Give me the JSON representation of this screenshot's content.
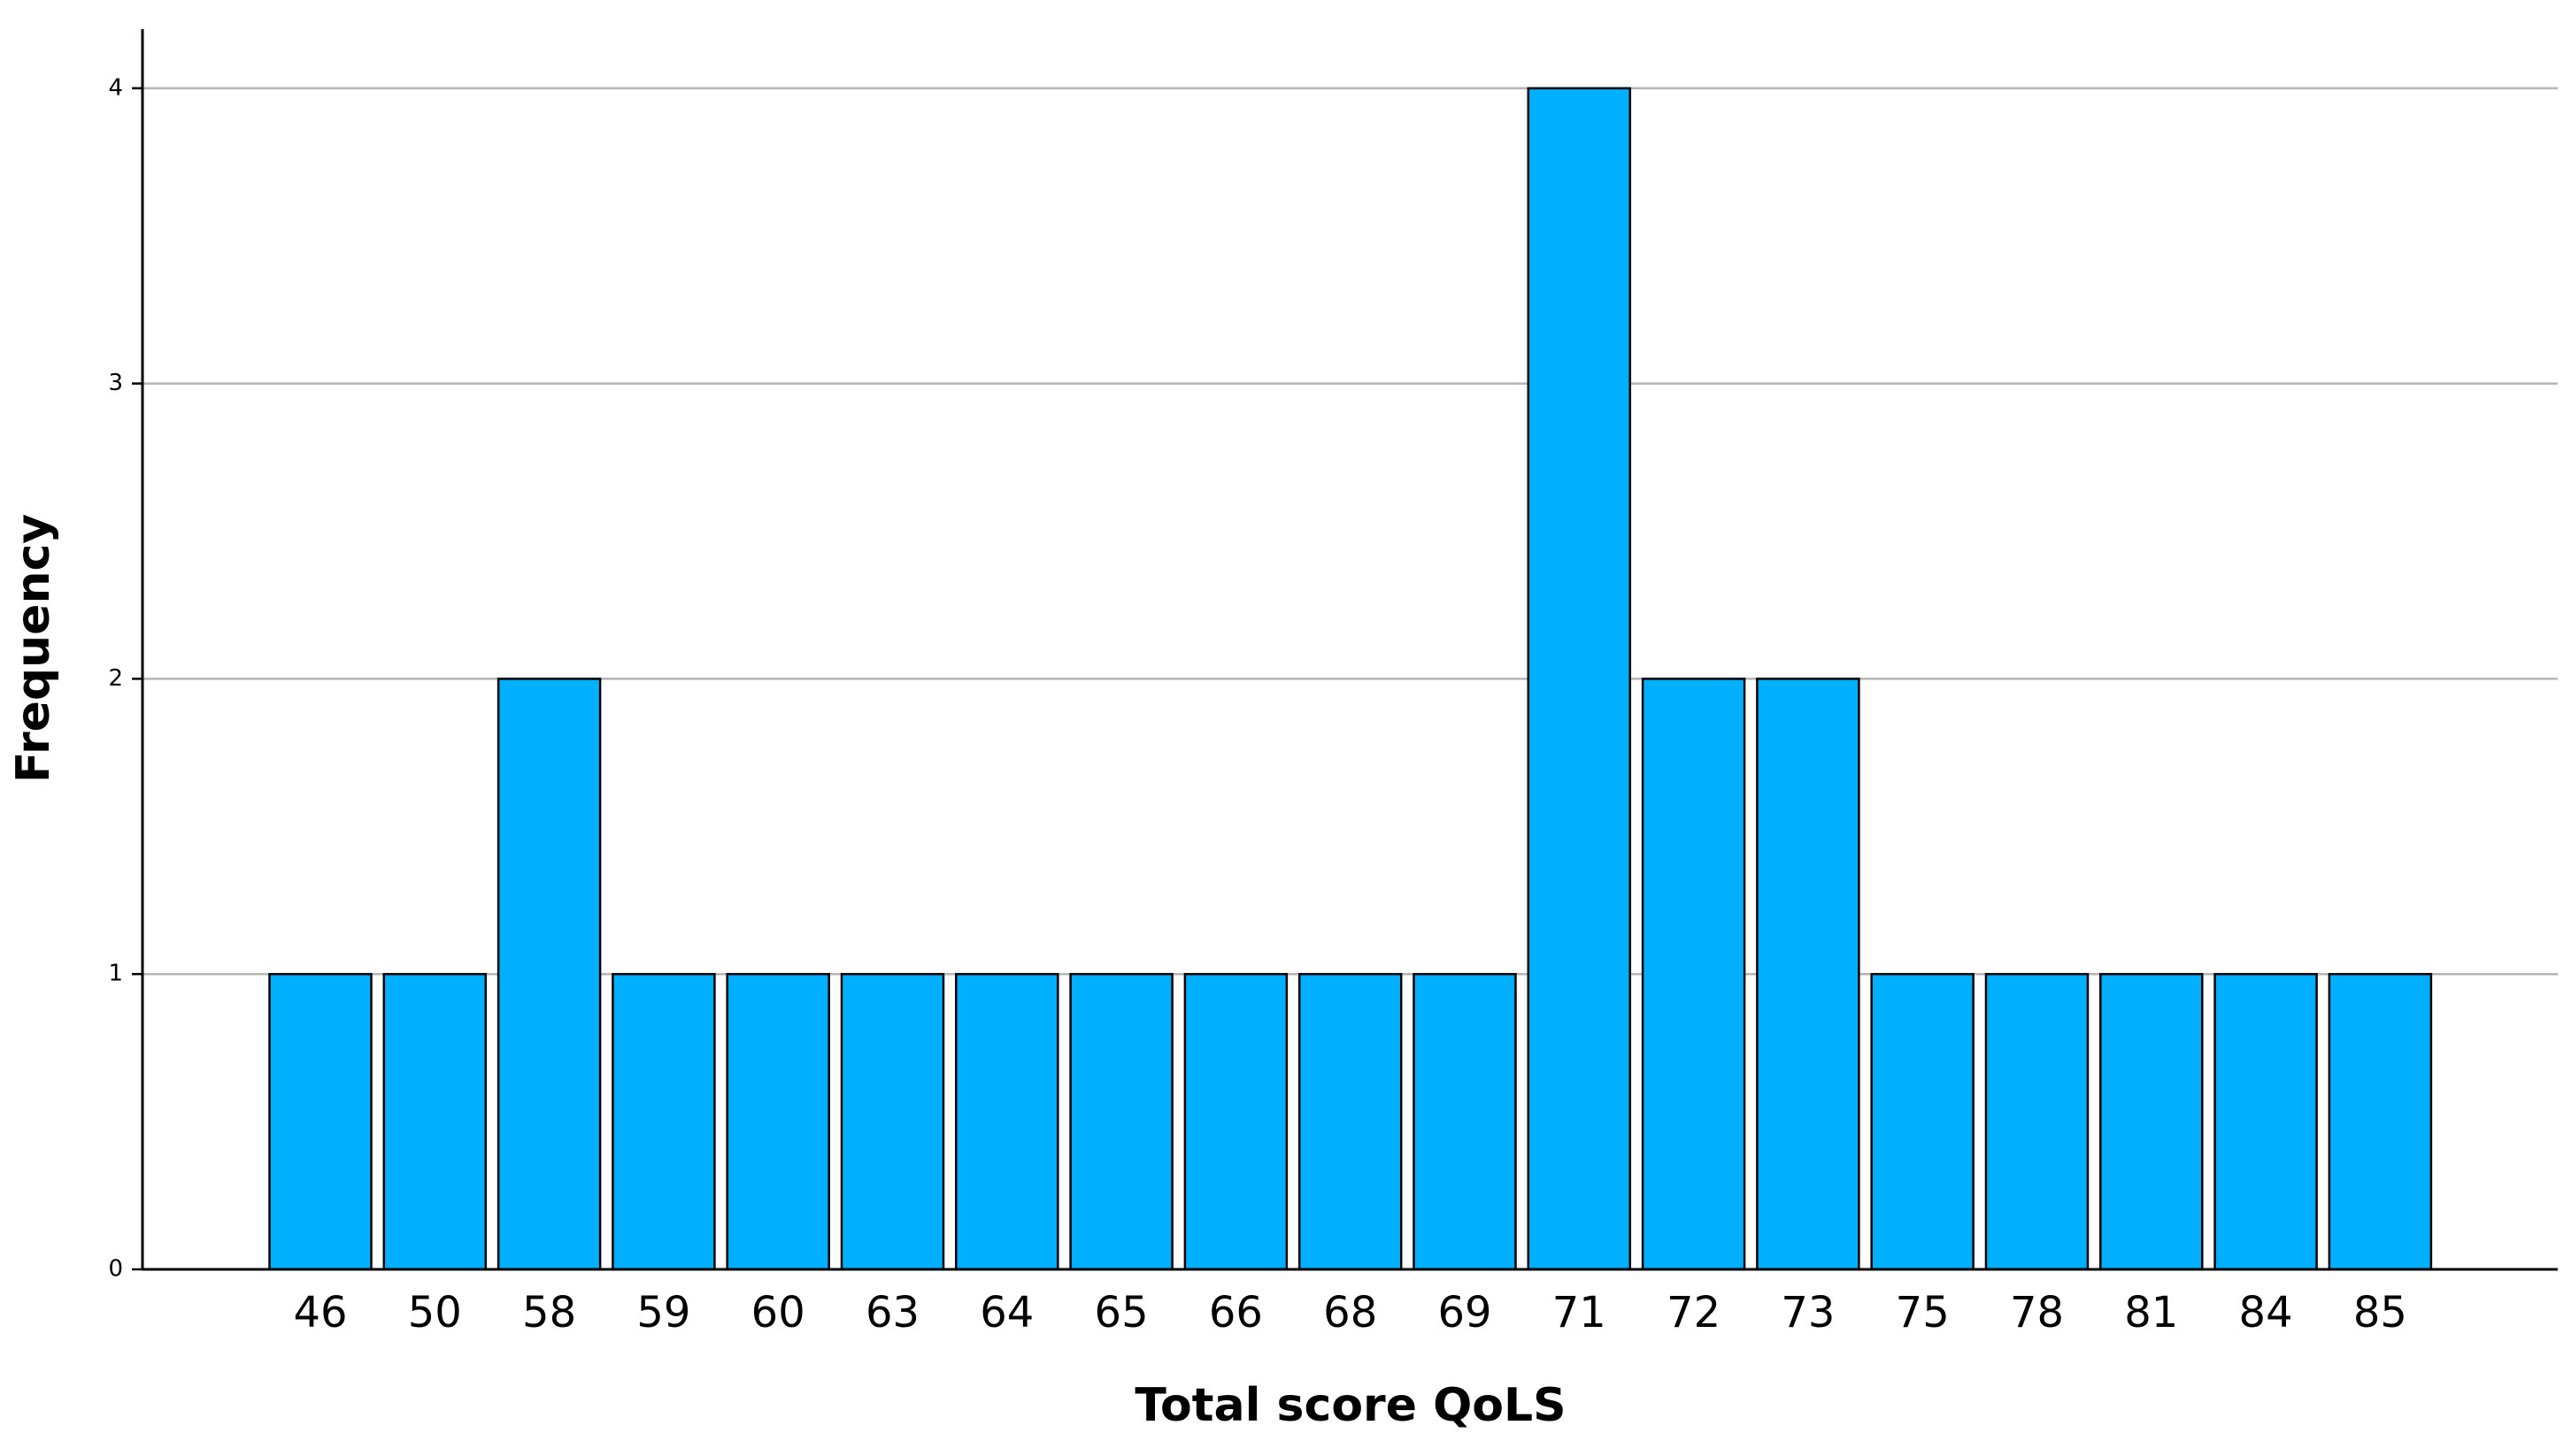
{
  "chart_data": {
    "type": "bar",
    "x_label": "Total score QoLS",
    "y_label": "Frequency",
    "categories": [
      "46",
      "50",
      "58",
      "59",
      "60",
      "63",
      "64",
      "65",
      "66",
      "68",
      "69",
      "71",
      "72",
      "73",
      "75",
      "78",
      "81",
      "84",
      "85"
    ],
    "values": [
      1,
      1,
      2,
      1,
      1,
      1,
      1,
      1,
      1,
      1,
      1,
      4,
      2,
      2,
      1,
      1,
      1,
      1,
      1
    ],
    "color": "#00b0ff",
    "ylim": [
      0,
      4.2
    ],
    "yticks": [
      0,
      1,
      2,
      3,
      4
    ],
    "grid": true
  }
}
